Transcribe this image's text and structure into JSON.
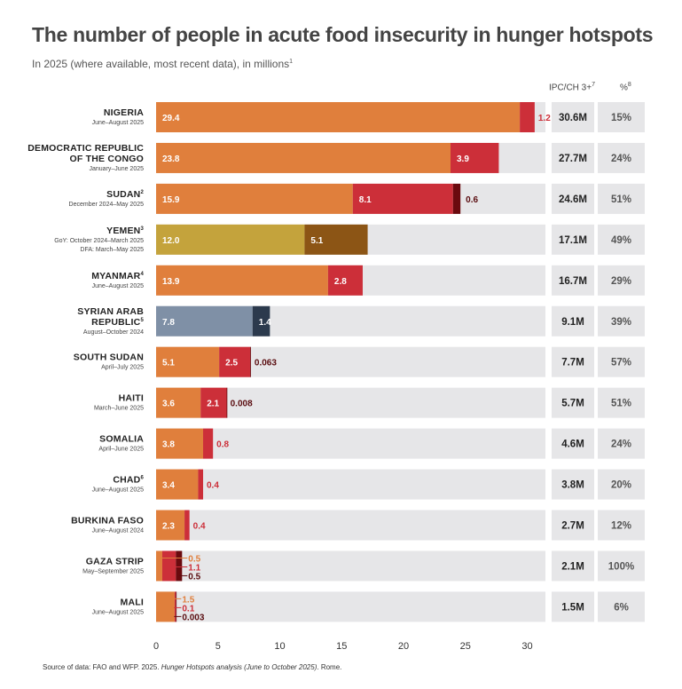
{
  "title": "The number of people in acute food insecurity in hunger hotspots",
  "subtitle": "In 2025 (where available, most recent data), in millions",
  "subtitle_note": "1",
  "col_headers": {
    "ipc": "IPC/CH 3+",
    "ipc_note": "7",
    "pct": "%",
    "pct_note": "8"
  },
  "source": {
    "prefix": "Source of data: FAO and WFP. 2025. ",
    "italic": "Hunger Hotspots analysis (June to October 2025)",
    "suffix": ". Rome."
  },
  "colors": {
    "orange": "#e07f3c",
    "red": "#cc2f39",
    "darkred": "#6a0a0e",
    "olive": "#c4a33c",
    "brown": "#8c5515",
    "slate": "#7f90a6",
    "navy": "#2c3a4d",
    "track": "#e6e6e8",
    "label_dark": "#5a0d10",
    "label_red": "#cc2f39",
    "label_orange": "#e07f3c"
  },
  "chart_data": {
    "type": "bar",
    "orientation": "horizontal",
    "stacked": true,
    "title": "The number of people in acute food insecurity in hunger hotspots",
    "xlabel": "",
    "ylabel": "",
    "xlim": [
      0,
      31
    ],
    "xticks": [
      0,
      5,
      10,
      15,
      20,
      25,
      30
    ],
    "rows": [
      {
        "name": "NIGERIA",
        "note": "",
        "period": [
          "June–August 2025"
        ],
        "total": "30.6M",
        "pct": "15%",
        "segments": [
          {
            "value": 29.4,
            "label": "29.4",
            "color": "orange"
          },
          {
            "value": 1.2,
            "label": "1.2",
            "color": "red"
          }
        ]
      },
      {
        "name": "DEMOCRATIC REPUBLIC|OF THE CONGO",
        "note": "",
        "period": [
          "January–June 2025"
        ],
        "total": "27.7M",
        "pct": "24%",
        "segments": [
          {
            "value": 23.8,
            "label": "23.8",
            "color": "orange"
          },
          {
            "value": 3.9,
            "label": "3.9",
            "color": "red"
          }
        ]
      },
      {
        "name": "SUDAN",
        "note": "2",
        "period": [
          "December 2024–May 2025"
        ],
        "total": "24.6M",
        "pct": "51%",
        "segments": [
          {
            "value": 15.9,
            "label": "15.9",
            "color": "orange"
          },
          {
            "value": 8.1,
            "label": "8.1",
            "color": "red"
          },
          {
            "value": 0.6,
            "label": "0.6",
            "color": "darkred"
          }
        ]
      },
      {
        "name": "YEMEN",
        "note": "3",
        "period": [
          "GoY: October 2024–March 2025",
          "DFA: March–May 2025"
        ],
        "total": "17.1M",
        "pct": "49%",
        "segments": [
          {
            "value": 12.0,
            "label": "12.0",
            "color": "olive"
          },
          {
            "value": 5.1,
            "label": "5.1",
            "color": "brown"
          }
        ]
      },
      {
        "name": "MYANMAR",
        "note": "4",
        "period": [
          "June–August 2025"
        ],
        "total": "16.7M",
        "pct": "29%",
        "segments": [
          {
            "value": 13.9,
            "label": "13.9",
            "color": "orange"
          },
          {
            "value": 2.8,
            "label": "2.8",
            "color": "red"
          }
        ]
      },
      {
        "name": "SYRIAN ARAB|REPUBLIC",
        "note": "5",
        "period": [
          "August–October 2024"
        ],
        "total": "9.1M",
        "pct": "39%",
        "segments": [
          {
            "value": 7.8,
            "label": "7.8",
            "color": "slate"
          },
          {
            "value": 1.4,
            "label": "1.4",
            "color": "navy"
          }
        ]
      },
      {
        "name": "SOUTH SUDAN",
        "note": "",
        "period": [
          "April–July 2025"
        ],
        "total": "7.7M",
        "pct": "57%",
        "segments": [
          {
            "value": 5.1,
            "label": "5.1",
            "color": "orange"
          },
          {
            "value": 2.5,
            "label": "2.5",
            "color": "red"
          },
          {
            "value": 0.063,
            "label": "0.063",
            "color": "darkred"
          }
        ]
      },
      {
        "name": "HAITI",
        "note": "",
        "period": [
          "March–June 2025"
        ],
        "total": "5.7M",
        "pct": "51%",
        "segments": [
          {
            "value": 3.6,
            "label": "3.6",
            "color": "orange"
          },
          {
            "value": 2.1,
            "label": "2.1",
            "color": "red"
          },
          {
            "value": 0.008,
            "label": "0.008",
            "color": "darkred"
          }
        ]
      },
      {
        "name": "SOMALIA",
        "note": "",
        "period": [
          "April–June 2025"
        ],
        "total": "4.6M",
        "pct": "24%",
        "segments": [
          {
            "value": 3.8,
            "label": "3.8",
            "color": "orange"
          },
          {
            "value": 0.8,
            "label": "0.8",
            "color": "red"
          }
        ]
      },
      {
        "name": "CHAD",
        "note": "6",
        "period": [
          "June–August 2025"
        ],
        "total": "3.8M",
        "pct": "20%",
        "segments": [
          {
            "value": 3.4,
            "label": "3.4",
            "color": "orange"
          },
          {
            "value": 0.4,
            "label": "0.4",
            "color": "red"
          }
        ]
      },
      {
        "name": "BURKINA FASO",
        "note": "",
        "period": [
          "June–August 2024"
        ],
        "total": "2.7M",
        "pct": "12%",
        "segments": [
          {
            "value": 2.3,
            "label": "2.3",
            "color": "orange"
          },
          {
            "value": 0.4,
            "label": "0.4",
            "color": "red"
          }
        ]
      },
      {
        "name": "GAZA STRIP",
        "note": "",
        "period": [
          "May–September 2025"
        ],
        "total": "2.1M",
        "pct": "100%",
        "segments": [
          {
            "value": 0.5,
            "label": "0.5",
            "color": "orange"
          },
          {
            "value": 1.1,
            "label": "1.1",
            "color": "red"
          },
          {
            "value": 0.5,
            "label": "0.5",
            "color": "darkred"
          }
        ]
      },
      {
        "name": "MALI",
        "note": "",
        "period": [
          "June–August 2025"
        ],
        "total": "1.5M",
        "pct": "6%",
        "segments": [
          {
            "value": 1.5,
            "label": "1.5",
            "color": "orange"
          },
          {
            "value": 0.1,
            "label": "0.1",
            "color": "red"
          },
          {
            "value": 0.003,
            "label": "0.003",
            "color": "darkred"
          }
        ]
      }
    ]
  }
}
